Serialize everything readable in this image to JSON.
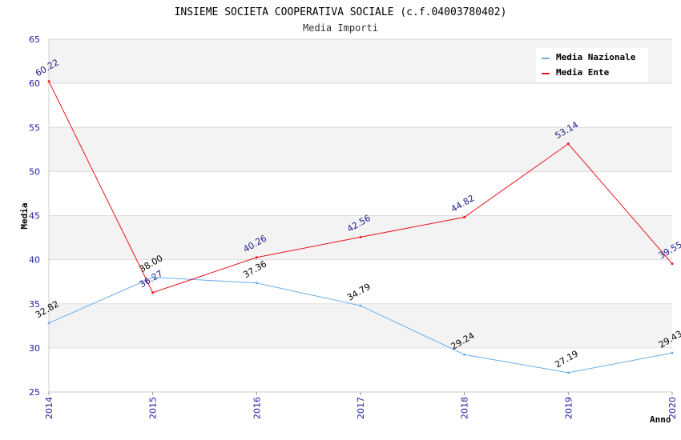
{
  "chart_data": {
    "type": "line",
    "title": "INSIEME SOCIETA COOPERATIVA SOCIALE (c.f.04003780402)",
    "subtitle": "Media Importi",
    "xlabel": "Anno",
    "ylabel": "Media",
    "x": [
      "2014",
      "2015",
      "2016",
      "2017",
      "2018",
      "2019",
      "2020"
    ],
    "ylim": [
      25,
      65
    ],
    "yticks": [
      25,
      30,
      35,
      40,
      45,
      50,
      55,
      60,
      65
    ],
    "grid": true,
    "legend_position": "top-right",
    "series": [
      {
        "name": "Media Nazionale",
        "color": "#6aaee8",
        "label_color": "#000000",
        "values": [
          32.82,
          38.0,
          37.36,
          34.79,
          29.24,
          27.19,
          29.43
        ],
        "labels": [
          "32.82",
          "38.00",
          "37.36",
          "34.79",
          "29.24",
          "27.19",
          "29.43"
        ]
      },
      {
        "name": "Media Ente",
        "color": "#e8141e",
        "label_color": "#1a1a8c",
        "values": [
          60.22,
          36.27,
          40.26,
          42.56,
          44.82,
          53.14,
          39.55
        ],
        "labels": [
          "60.22",
          "36.27",
          "40.26",
          "42.56",
          "44.82",
          "53.14",
          "39.55"
        ]
      }
    ]
  }
}
